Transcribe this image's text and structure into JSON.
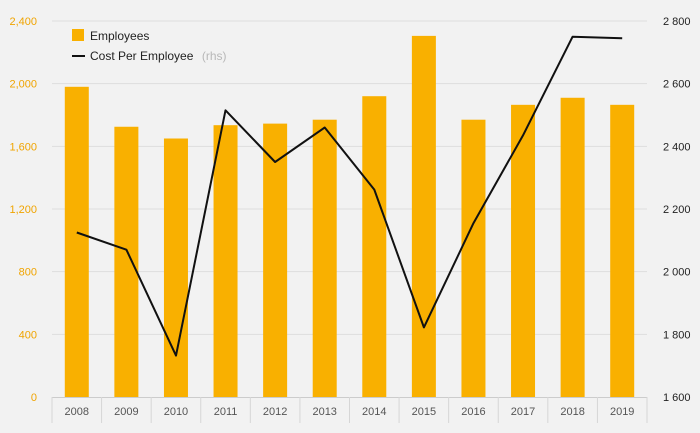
{
  "chart_data": {
    "type": "bar+line",
    "categories": [
      "2008",
      "2009",
      "2010",
      "2011",
      "2012",
      "2013",
      "2014",
      "2015",
      "2016",
      "2017",
      "2018",
      "2019"
    ],
    "series": [
      {
        "name": "Employees",
        "type": "bar",
        "axis": "left",
        "color": "#f9b000",
        "values": [
          1980,
          1725,
          1650,
          1735,
          1745,
          1770,
          1920,
          2305,
          1770,
          1865,
          1910,
          1865
        ]
      },
      {
        "name": "Cost Per Employee",
        "name_suffix": "(rhs)",
        "type": "line",
        "axis": "right",
        "color": "#111111",
        "values": [
          2125,
          2070,
          1732,
          2515,
          2350,
          2460,
          2262,
          1822,
          2155,
          2435,
          2750,
          2745
        ]
      }
    ],
    "y_left": {
      "ylim": [
        0,
        2400
      ],
      "ticks": [
        0,
        400,
        800,
        1200,
        1600,
        2000,
        2400
      ],
      "tick_labels": [
        "0",
        "400",
        "800",
        "1,200",
        "1,600",
        "2,000",
        "2,400"
      ],
      "label_color": "#f0a400"
    },
    "y_right": {
      "ylim": [
        1600,
        2800
      ],
      "ticks": [
        1600,
        1800,
        2000,
        2200,
        2400,
        2600,
        2800
      ],
      "tick_labels": [
        "1 600",
        "1 800",
        "2 000",
        "2 200",
        "2 400",
        "2 600",
        "2 800"
      ]
    },
    "grid": true,
    "legend": "top-left",
    "title": "",
    "xlabel": "",
    "ylabel": ""
  }
}
